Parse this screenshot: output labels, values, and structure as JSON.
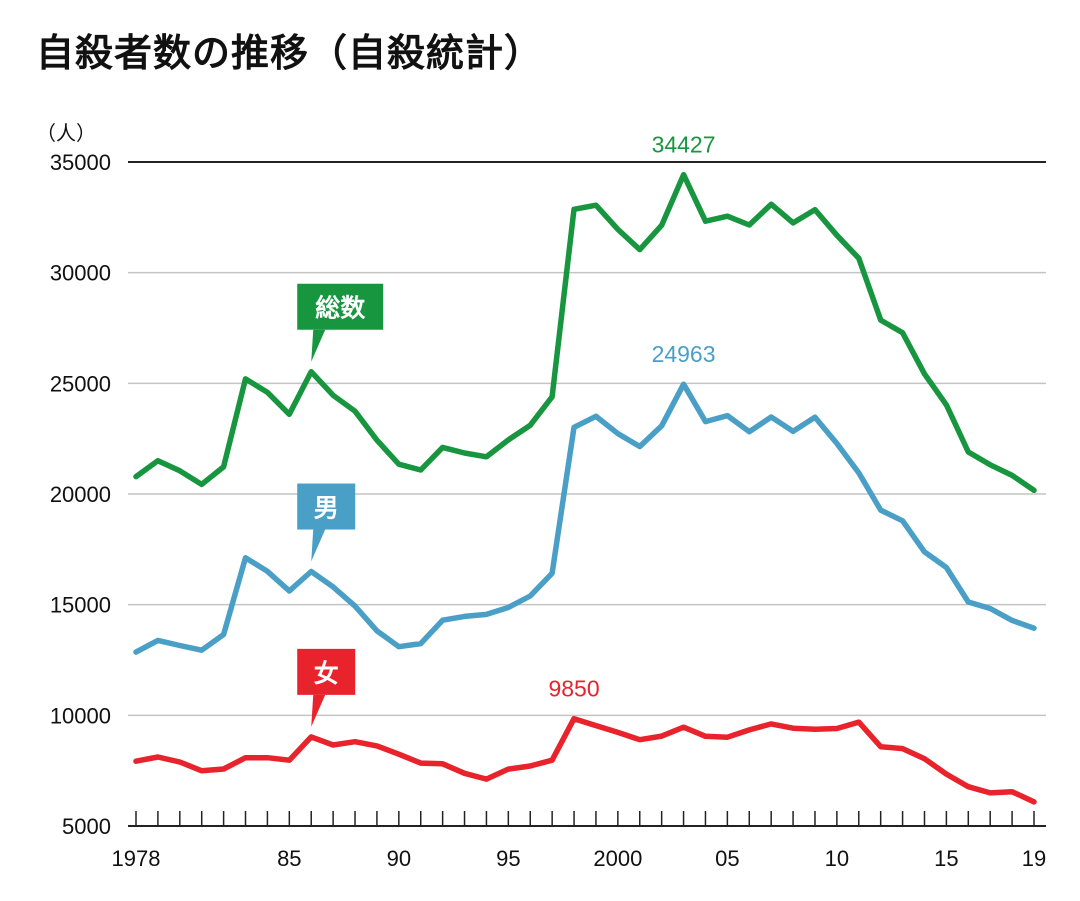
{
  "chart_data": {
    "type": "line",
    "title": "自殺者数の推移（自殺統計）",
    "ylabel": "（人）",
    "xlabel": "",
    "ylim": [
      5000,
      35000
    ],
    "xlim": [
      1978,
      2019
    ],
    "y_ticks": [
      5000,
      10000,
      15000,
      20000,
      25000,
      30000,
      35000
    ],
    "y_tick_labels": [
      "5000",
      "10000",
      "15000",
      "20000",
      "25000",
      "30000",
      "35000"
    ],
    "x_ticks": [
      1978,
      1985,
      1990,
      1995,
      2000,
      2005,
      2010,
      2015,
      2019
    ],
    "x_tick_labels": [
      "1978",
      "85",
      "90",
      "95",
      "2000",
      "05",
      "10",
      "15",
      "19"
    ],
    "x": [
      1978,
      1979,
      1980,
      1981,
      1982,
      1983,
      1984,
      1985,
      1986,
      1987,
      1988,
      1989,
      1990,
      1991,
      1992,
      1993,
      1994,
      1995,
      1996,
      1997,
      1998,
      1999,
      2000,
      2001,
      2002,
      2003,
      2004,
      2005,
      2006,
      2007,
      2008,
      2009,
      2010,
      2011,
      2012,
      2013,
      2014,
      2015,
      2016,
      2017,
      2018,
      2019
    ],
    "series": [
      {
        "name": "総数",
        "color": "#17963f",
        "values": [
          20788,
          21503,
          21048,
          20434,
          21228,
          25202,
          24596,
          23599,
          25524,
          24460,
          23742,
          22436,
          21346,
          21084,
          22104,
          21851,
          21679,
          22445,
          23104,
          24391,
          32863,
          33048,
          31957,
          31042,
          32143,
          34427,
          32325,
          32552,
          32155,
          33093,
          32249,
          32845,
          31690,
          30651,
          27858,
          27283,
          25427,
          24025,
          21897,
          21321,
          20840,
          20169
        ],
        "peak": {
          "x": 2003,
          "value": 34427,
          "label": "34427"
        }
      },
      {
        "name": "男",
        "color": "#4a9fc6",
        "values": [
          12859,
          13386,
          13155,
          12942,
          13654,
          17116,
          16508,
          15624,
          16497,
          15802,
          14934,
          13818,
          13102,
          13242,
          14296,
          14468,
          14560,
          14874,
          15393,
          16416,
          23013,
          23512,
          22727,
          22144,
          23080,
          24963,
          23272,
          23540,
          22813,
          23478,
          22831,
          23472,
          22283,
          20955,
          19273,
          18787,
          17386,
          16681,
          15121,
          14826,
          14290,
          13937
        ],
        "peak": {
          "x": 2003,
          "value": 24963,
          "label": "24963"
        }
      },
      {
        "name": "女",
        "color": "#e9232c",
        "values": [
          7929,
          8117,
          7893,
          7492,
          7574,
          8086,
          8088,
          7975,
          9027,
          8658,
          8808,
          8618,
          8244,
          7842,
          7808,
          7383,
          7119,
          7571,
          7711,
          7975,
          9850,
          9536,
          9230,
          8898,
          9063,
          9464,
          9053,
          9012,
          9342,
          9615,
          9418,
          9373,
          9407,
          9696,
          8585,
          8496,
          8041,
          7344,
          6776,
          6495,
          6550,
          6091
        ],
        "peak": {
          "x": 1998,
          "value": 9850,
          "label": "9850"
        }
      }
    ],
    "legend": "inline callouts"
  }
}
